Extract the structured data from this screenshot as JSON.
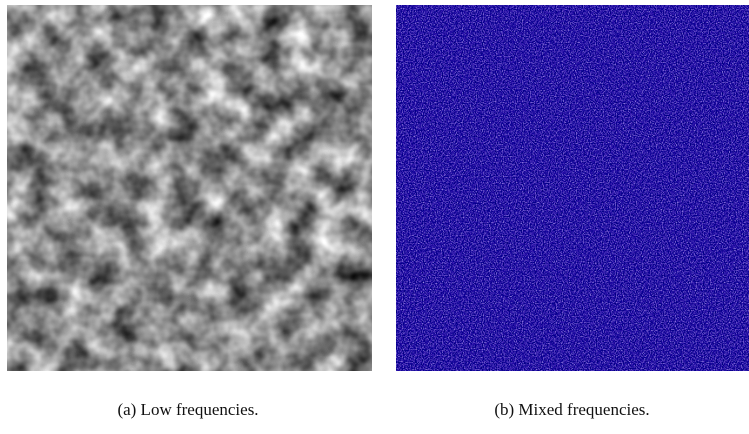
{
  "figure": {
    "captions": [
      "(a) Low frequencies.",
      "(b) Mixed frequencies."
    ]
  }
}
